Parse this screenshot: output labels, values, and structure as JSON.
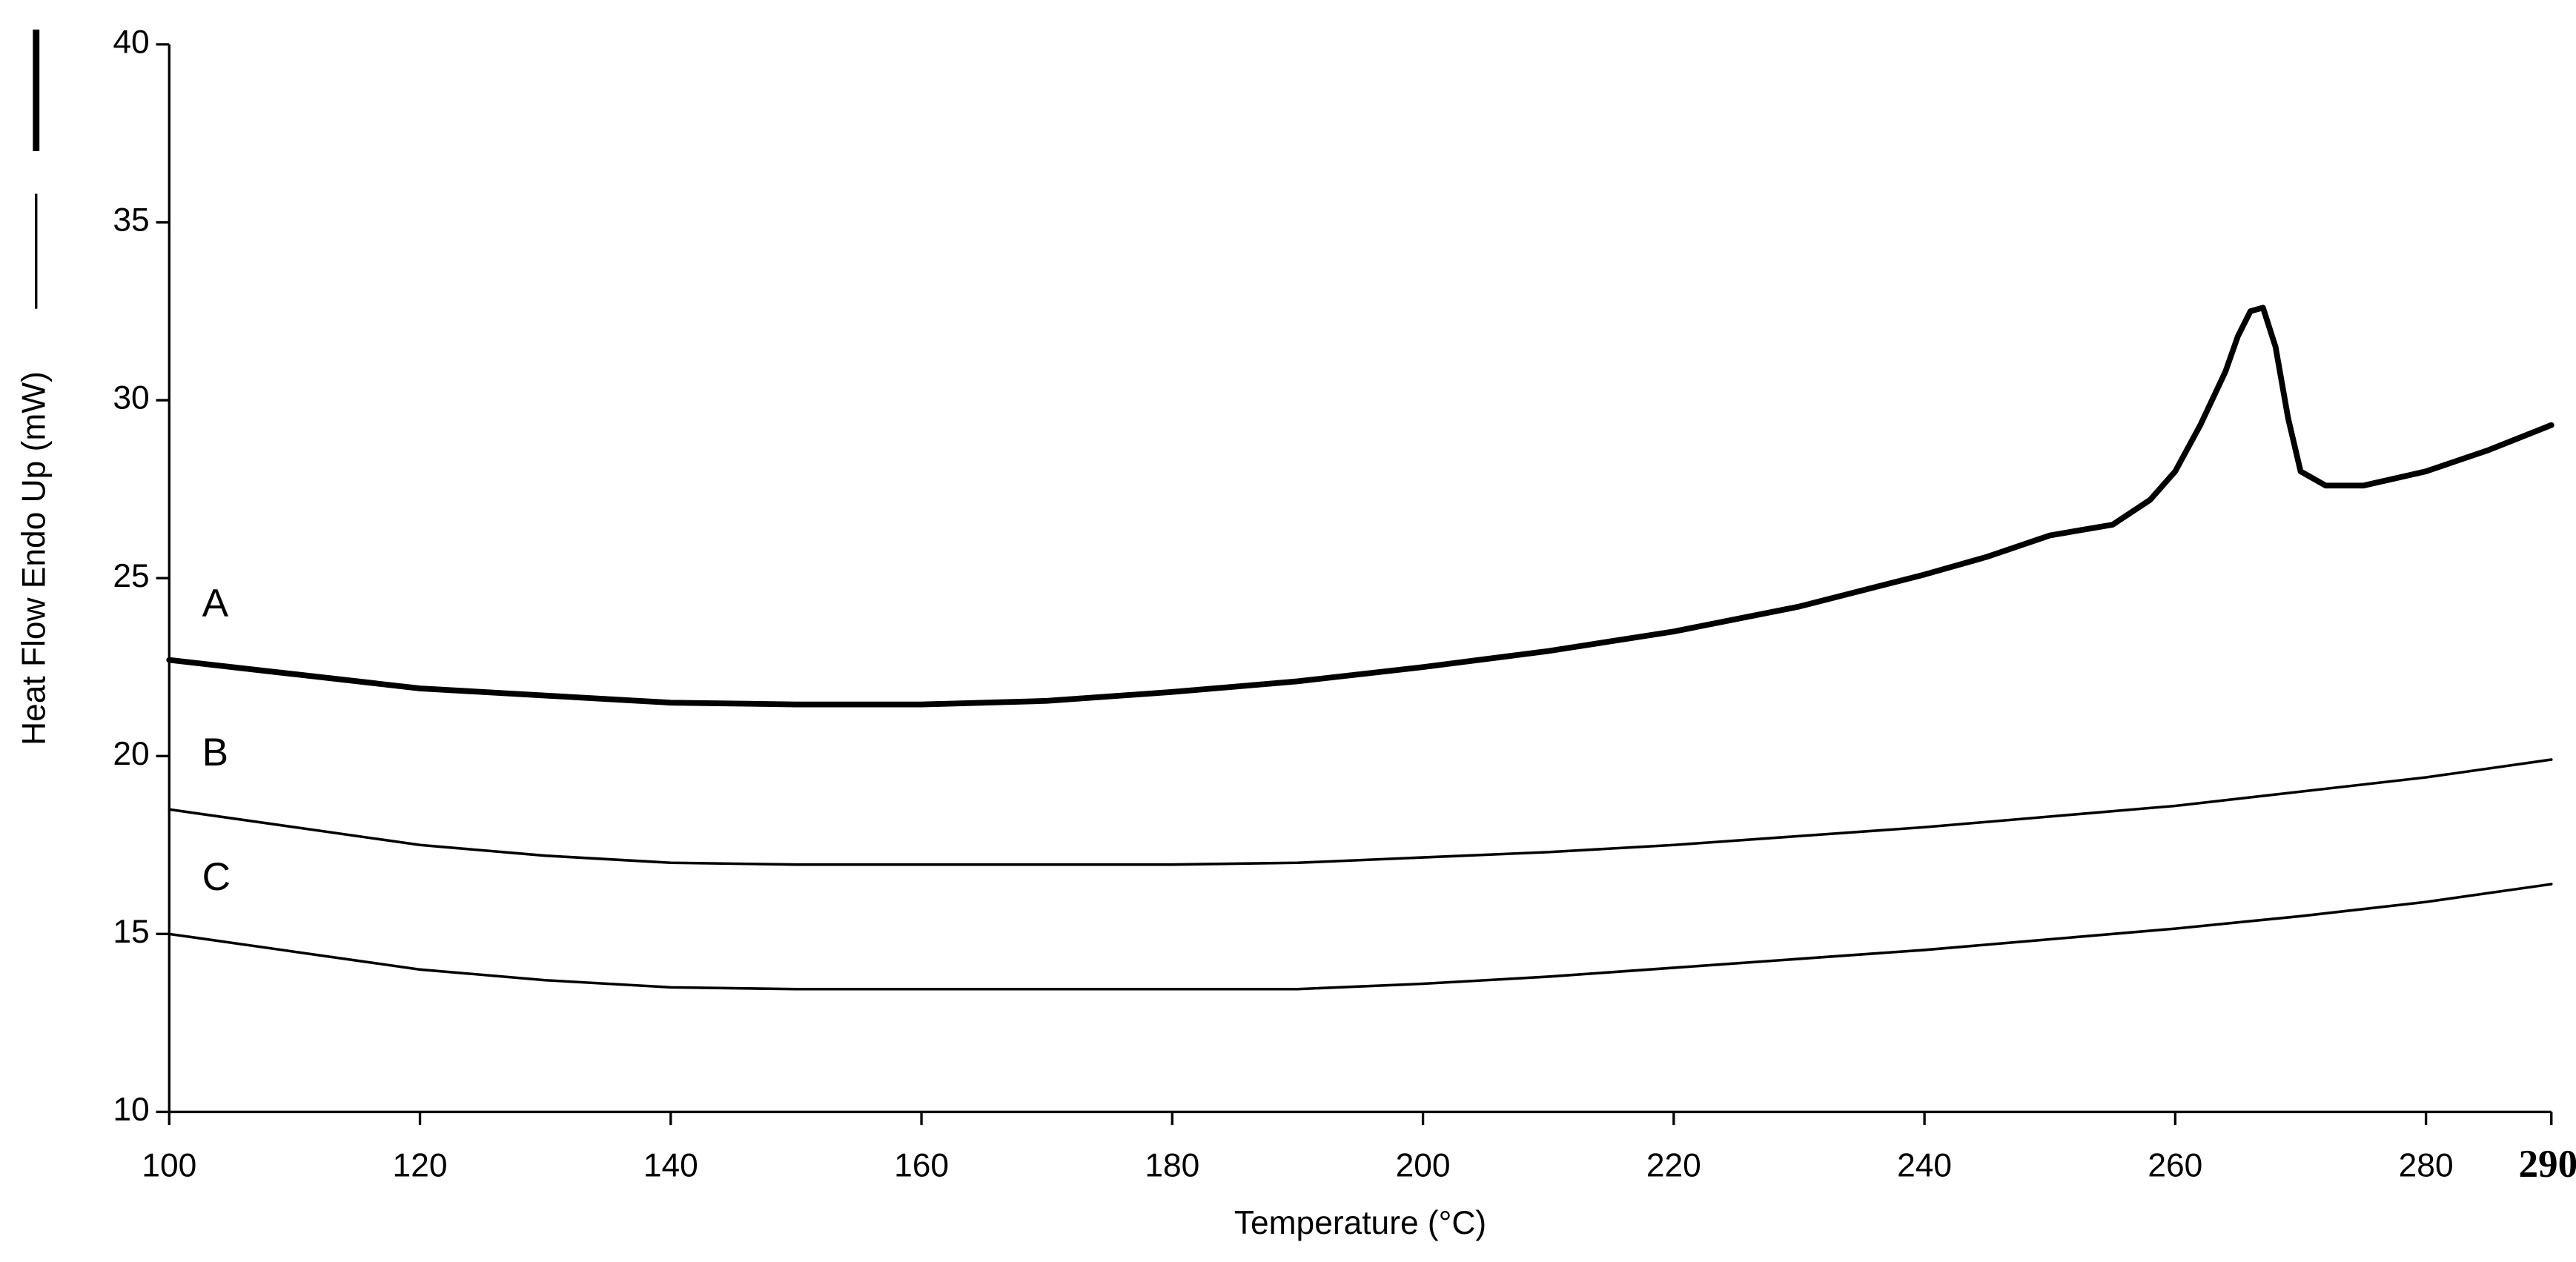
{
  "chart_data": {
    "type": "line",
    "x_label": "Temperature (°C)",
    "y_label": "Heat Flow Endo Up (mW)",
    "xlim": [
      100,
      290
    ],
    "ylim": [
      10,
      40
    ],
    "xticks": [
      100,
      120,
      140,
      160,
      180,
      200,
      220,
      240,
      260,
      280,
      290
    ],
    "yticks": [
      10,
      15,
      20,
      25,
      30,
      35,
      40
    ],
    "grid": false,
    "series": [
      {
        "name": "A",
        "color": "#000000",
        "x": [
          100,
          110,
          120,
          130,
          140,
          150,
          160,
          170,
          180,
          190,
          200,
          210,
          220,
          230,
          240,
          245,
          250,
          255,
          258,
          260,
          262,
          264,
          265,
          266,
          267,
          268,
          269,
          270,
          272,
          275,
          280,
          285,
          290
        ],
        "values": [
          22.7,
          22.3,
          21.9,
          21.7,
          21.5,
          21.45,
          21.45,
          21.55,
          21.8,
          22.1,
          22.5,
          22.95,
          23.5,
          24.2,
          25.1,
          25.6,
          26.2,
          26.5,
          27.2,
          28.0,
          29.3,
          30.8,
          31.8,
          32.5,
          32.6,
          31.5,
          29.5,
          28.0,
          27.6,
          27.6,
          28.0,
          28.6,
          29.3
        ]
      },
      {
        "name": "B",
        "color": "#000000",
        "x": [
          100,
          110,
          120,
          130,
          140,
          150,
          160,
          170,
          180,
          190,
          200,
          210,
          220,
          230,
          240,
          250,
          260,
          270,
          280,
          290
        ],
        "values": [
          18.5,
          18.0,
          17.5,
          17.2,
          17.0,
          16.95,
          16.95,
          16.95,
          16.95,
          17.0,
          17.15,
          17.3,
          17.5,
          17.75,
          18.0,
          18.3,
          18.6,
          19.0,
          19.4,
          19.9
        ]
      },
      {
        "name": "C",
        "color": "#000000",
        "x": [
          100,
          110,
          120,
          130,
          140,
          150,
          160,
          170,
          180,
          190,
          200,
          210,
          220,
          230,
          240,
          250,
          260,
          270,
          280,
          290
        ],
        "values": [
          15.0,
          14.5,
          14.0,
          13.7,
          13.5,
          13.45,
          13.45,
          13.45,
          13.45,
          13.45,
          13.6,
          13.8,
          14.05,
          14.3,
          14.55,
          14.85,
          15.15,
          15.5,
          15.9,
          16.4
        ]
      }
    ]
  }
}
